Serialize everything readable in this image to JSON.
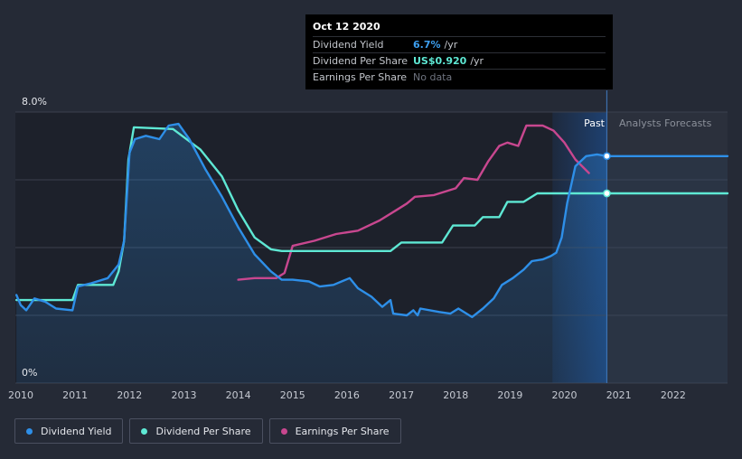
{
  "tooltip": {
    "date": "Oct 12 2020",
    "rows": [
      {
        "label": "Dividend Yield",
        "value": "6.7%",
        "unit": "/yr",
        "color": "#3d9ff0"
      },
      {
        "label": "Dividend Per Share",
        "value": "US$0.920",
        "unit": "/yr",
        "color": "#5ee8d4"
      },
      {
        "label": "Earnings Per Share",
        "value": "No data",
        "unit": "",
        "color": "#6f7480"
      }
    ]
  },
  "regions": {
    "past": "Past",
    "forecast": "Analysts Forecasts"
  },
  "legend": [
    {
      "label": "Dividend Yield",
      "color": "#2e8fe8"
    },
    {
      "label": "Dividend Per Share",
      "color": "#5ee8d4"
    },
    {
      "label": "Earnings Per Share",
      "color": "#c8478f"
    }
  ],
  "chart_data": {
    "type": "line",
    "x_ticks": [
      "2010",
      "2011",
      "2012",
      "2013",
      "2014",
      "2015",
      "2016",
      "2017",
      "2018",
      "2019",
      "2020",
      "2021",
      "2022"
    ],
    "y_labels": [
      "8.0%",
      "0%"
    ],
    "ylim": [
      0,
      8.0
    ],
    "xlim": [
      2009.9,
      2023.0
    ],
    "past_end": 2020.78,
    "grid": true,
    "series": [
      {
        "name": "Dividend Yield",
        "color": "#2e8fe8",
        "points": [
          [
            2009.92,
            2.6
          ],
          [
            2010.0,
            2.3
          ],
          [
            2010.1,
            2.15
          ],
          [
            2010.25,
            2.5
          ],
          [
            2010.45,
            2.4
          ],
          [
            2010.65,
            2.2
          ],
          [
            2010.95,
            2.15
          ],
          [
            2011.05,
            2.85
          ],
          [
            2011.3,
            2.95
          ],
          [
            2011.6,
            3.1
          ],
          [
            2011.8,
            3.5
          ],
          [
            2011.9,
            4.2
          ],
          [
            2012.0,
            6.8
          ],
          [
            2012.1,
            7.2
          ],
          [
            2012.3,
            7.3
          ],
          [
            2012.55,
            7.2
          ],
          [
            2012.72,
            7.6
          ],
          [
            2012.9,
            7.65
          ],
          [
            2013.1,
            7.2
          ],
          [
            2013.4,
            6.3
          ],
          [
            2013.7,
            5.5
          ],
          [
            2014.0,
            4.6
          ],
          [
            2014.3,
            3.8
          ],
          [
            2014.6,
            3.3
          ],
          [
            2014.8,
            3.05
          ],
          [
            2015.0,
            3.05
          ],
          [
            2015.3,
            3.0
          ],
          [
            2015.5,
            2.85
          ],
          [
            2015.75,
            2.9
          ],
          [
            2016.05,
            3.1
          ],
          [
            2016.2,
            2.8
          ],
          [
            2016.45,
            2.55
          ],
          [
            2016.65,
            2.25
          ],
          [
            2016.8,
            2.45
          ],
          [
            2016.85,
            2.05
          ],
          [
            2017.1,
            2.0
          ],
          [
            2017.22,
            2.15
          ],
          [
            2017.3,
            2.0
          ],
          [
            2017.35,
            2.2
          ],
          [
            2017.7,
            2.1
          ],
          [
            2017.9,
            2.05
          ],
          [
            2018.05,
            2.2
          ],
          [
            2018.3,
            1.95
          ],
          [
            2018.5,
            2.2
          ],
          [
            2018.7,
            2.5
          ],
          [
            2018.85,
            2.9
          ],
          [
            2019.05,
            3.1
          ],
          [
            2019.25,
            3.35
          ],
          [
            2019.4,
            3.6
          ],
          [
            2019.6,
            3.65
          ],
          [
            2019.75,
            3.75
          ],
          [
            2019.85,
            3.85
          ],
          [
            2019.95,
            4.3
          ],
          [
            2020.05,
            5.3
          ],
          [
            2020.2,
            6.4
          ],
          [
            2020.4,
            6.7
          ],
          [
            2020.6,
            6.75
          ],
          [
            2020.78,
            6.7
          ],
          [
            2023.0,
            6.7
          ]
        ]
      },
      {
        "name": "Dividend Per Share",
        "color": "#5ee8d4",
        "points": [
          [
            2009.92,
            2.45
          ],
          [
            2010.0,
            2.45
          ],
          [
            2010.95,
            2.45
          ],
          [
            2011.05,
            2.9
          ],
          [
            2011.7,
            2.9
          ],
          [
            2011.8,
            3.3
          ],
          [
            2011.9,
            4.2
          ],
          [
            2011.98,
            6.6
          ],
          [
            2012.08,
            7.55
          ],
          [
            2012.8,
            7.5
          ],
          [
            2013.3,
            6.9
          ],
          [
            2013.7,
            6.1
          ],
          [
            2014.0,
            5.1
          ],
          [
            2014.3,
            4.3
          ],
          [
            2014.6,
            3.95
          ],
          [
            2014.8,
            3.9
          ],
          [
            2015.0,
            3.9
          ],
          [
            2016.8,
            3.9
          ],
          [
            2017.0,
            4.15
          ],
          [
            2017.75,
            4.15
          ],
          [
            2017.95,
            4.65
          ],
          [
            2018.35,
            4.65
          ],
          [
            2018.5,
            4.9
          ],
          [
            2018.8,
            4.9
          ],
          [
            2018.95,
            5.35
          ],
          [
            2019.25,
            5.35
          ],
          [
            2019.5,
            5.6
          ],
          [
            2019.9,
            5.6
          ],
          [
            2020.78,
            5.6
          ],
          [
            2023.0,
            5.6
          ]
        ]
      },
      {
        "name": "Earnings Per Share",
        "color": "#c8478f",
        "points": [
          [
            2014.0,
            3.05
          ],
          [
            2014.3,
            3.1
          ],
          [
            2014.7,
            3.1
          ],
          [
            2014.85,
            3.25
          ],
          [
            2015.0,
            4.05
          ],
          [
            2015.4,
            4.2
          ],
          [
            2015.8,
            4.4
          ],
          [
            2016.2,
            4.5
          ],
          [
            2016.6,
            4.8
          ],
          [
            2016.9,
            5.1
          ],
          [
            2017.1,
            5.3
          ],
          [
            2017.25,
            5.5
          ],
          [
            2017.6,
            5.55
          ],
          [
            2017.8,
            5.65
          ],
          [
            2018.0,
            5.75
          ],
          [
            2018.15,
            6.05
          ],
          [
            2018.4,
            6.0
          ],
          [
            2018.6,
            6.55
          ],
          [
            2018.8,
            7.0
          ],
          [
            2018.95,
            7.1
          ],
          [
            2019.15,
            7.0
          ],
          [
            2019.3,
            7.6
          ],
          [
            2019.6,
            7.6
          ],
          [
            2019.8,
            7.45
          ],
          [
            2020.0,
            7.1
          ],
          [
            2020.2,
            6.6
          ],
          [
            2020.45,
            6.2
          ]
        ]
      }
    ]
  }
}
